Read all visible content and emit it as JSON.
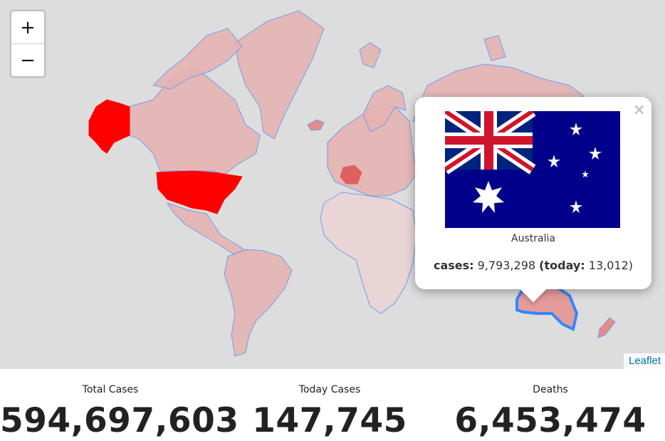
{
  "map": {
    "zoom_in": "+",
    "zoom_out": "−",
    "attribution": "Leaflet",
    "fill_low": "#e6b2b2",
    "fill_high": "#ff0000",
    "border": "#3388ff",
    "ocean": "#dddddd",
    "highlighted_countries": [
      "United States",
      "Alaska",
      "France"
    ]
  },
  "popup": {
    "close": "×",
    "country": "Australia",
    "flag": "australia-flag",
    "cases_label": "cases:",
    "cases_value": "9,793,298",
    "today_open": "(",
    "today_label": "today:",
    "today_value": "13,012",
    "today_close": ")"
  },
  "stats": [
    {
      "label": "Total Cases",
      "value": "594,697,603"
    },
    {
      "label": "Today Cases",
      "value": "147,745"
    },
    {
      "label": "Deaths",
      "value": "6,453,474"
    }
  ]
}
